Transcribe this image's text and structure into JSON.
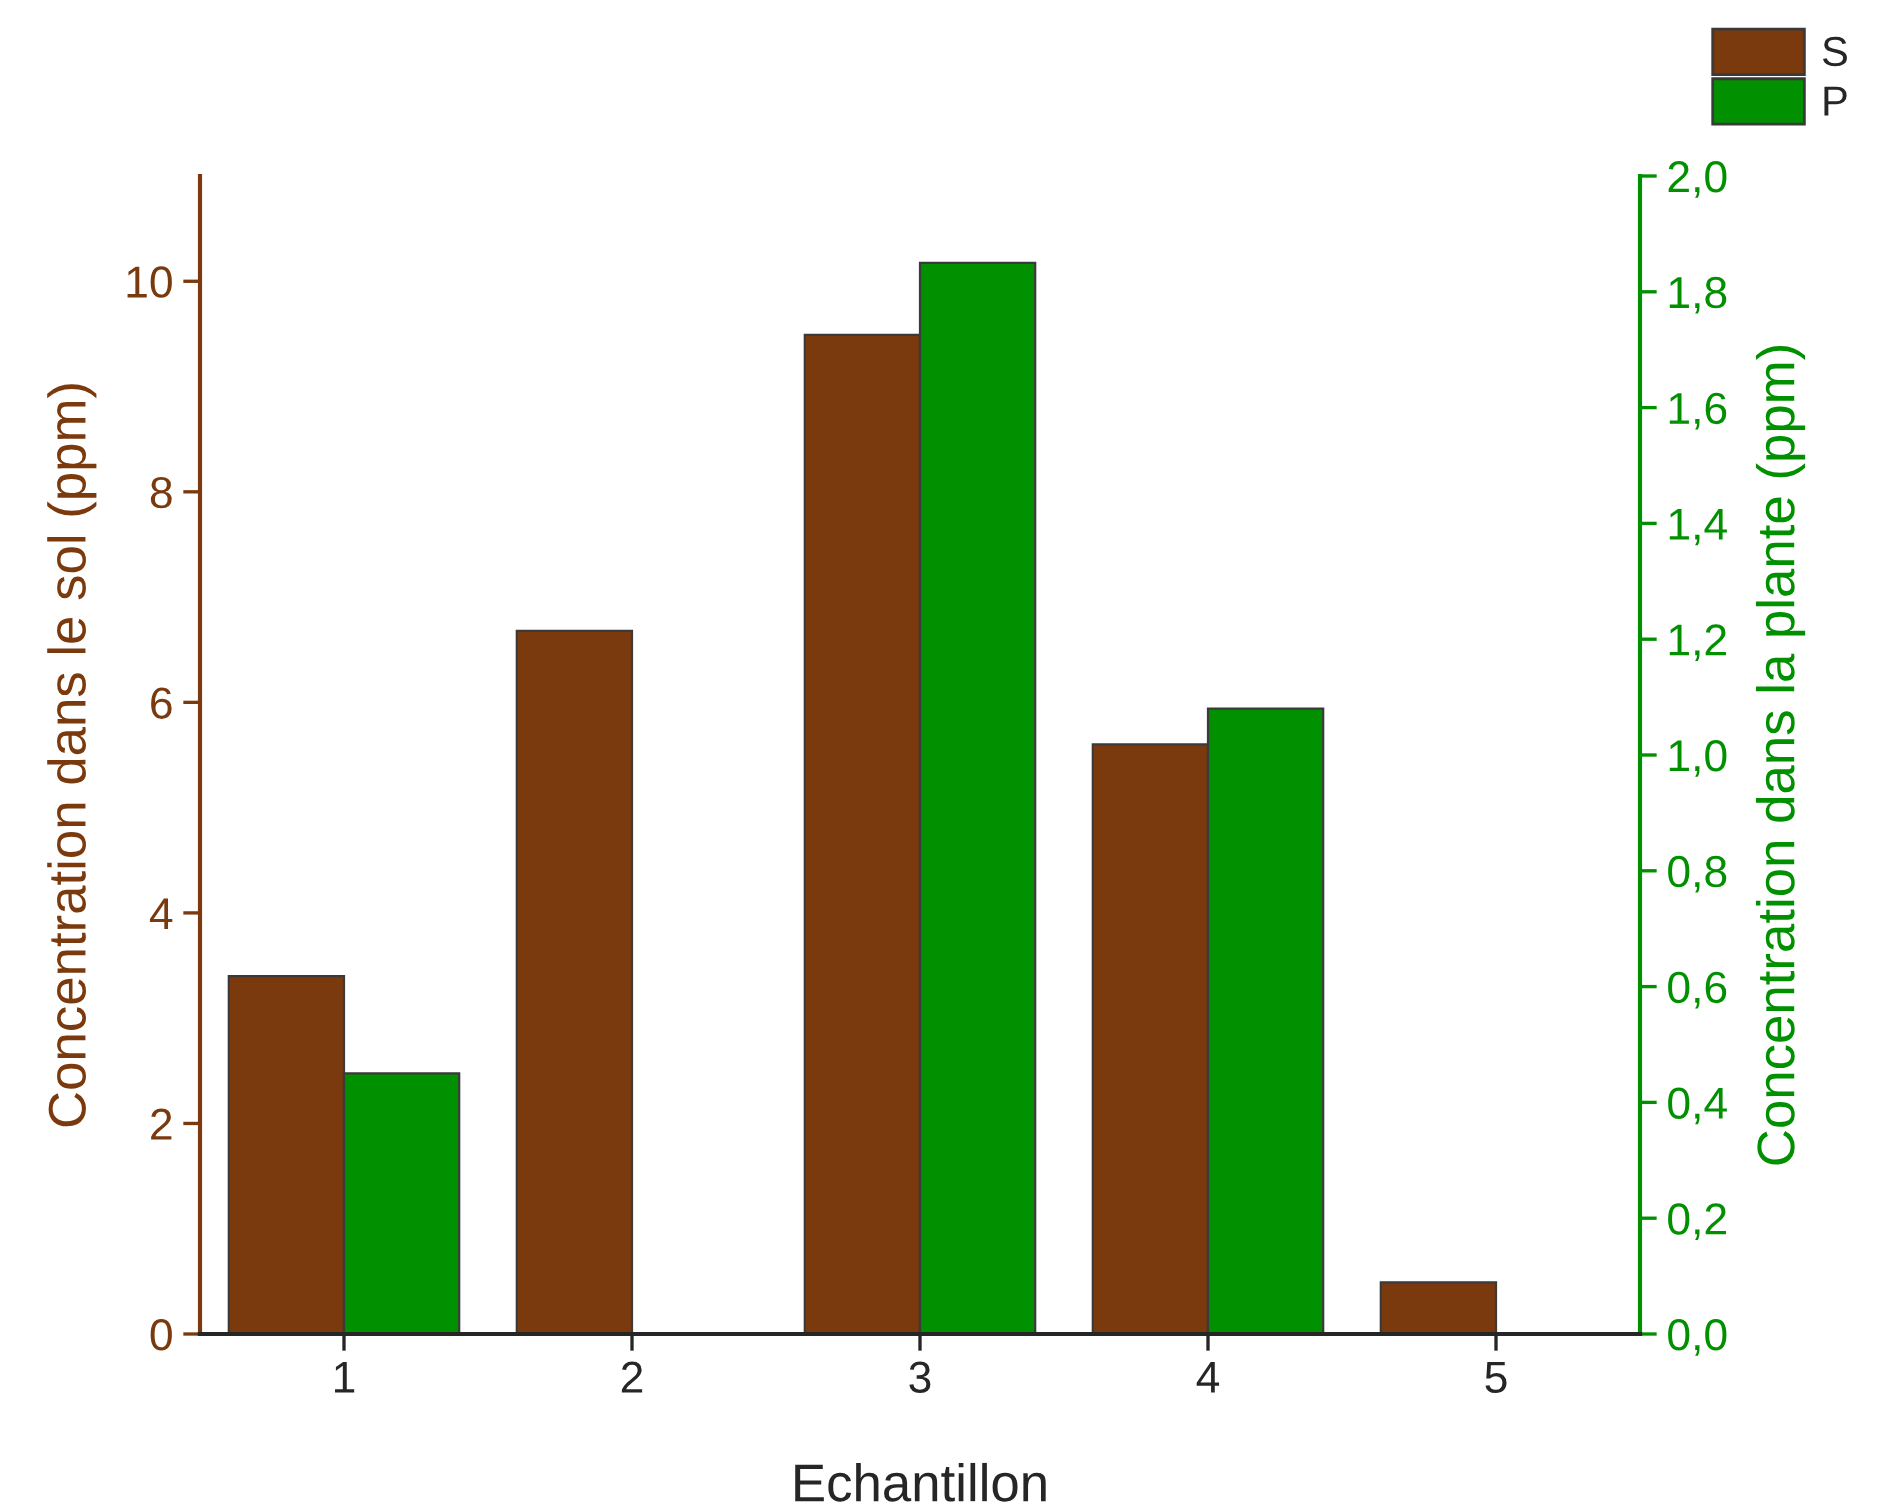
{
  "chart_data": {
    "type": "bar",
    "xlabel": "Echantillon",
    "ylabel": "Concentration dans le sol (ppm)",
    "y2label": "Concentration dans la plante (ppm)",
    "categories": [
      "1",
      "2",
      "3",
      "4",
      "5"
    ],
    "series": [
      {
        "name": "S",
        "color": "#7a3a0e",
        "values": [
          3.4,
          6.68,
          9.49,
          5.6,
          0.49
        ]
      },
      {
        "name": "P",
        "color": "#009000",
        "axis": "y2",
        "values": [
          0.45,
          null,
          1.85,
          1.08,
          null
        ]
      }
    ],
    "ylim": [
      0,
      11
    ],
    "yticks": [
      0,
      2,
      4,
      6,
      8,
      10
    ],
    "y2lim": [
      0,
      2
    ],
    "y2ticks": [
      {
        "value": 0,
        "label": "0,0"
      },
      {
        "value": 0.2,
        "label": "0,2"
      },
      {
        "value": 0.4,
        "label": "0,4"
      },
      {
        "value": 0.6,
        "label": "0,6"
      },
      {
        "value": 0.8,
        "label": "0,8"
      },
      {
        "value": 1.0,
        "label": "1,0"
      },
      {
        "value": 1.2,
        "label": "1,2"
      },
      {
        "value": 1.4,
        "label": "1,4"
      },
      {
        "value": 1.6,
        "label": "1,6"
      },
      {
        "value": 1.8,
        "label": "1,8"
      },
      {
        "value": 2.0,
        "label": "2,0"
      }
    ],
    "grid": false,
    "legend": "top right"
  }
}
